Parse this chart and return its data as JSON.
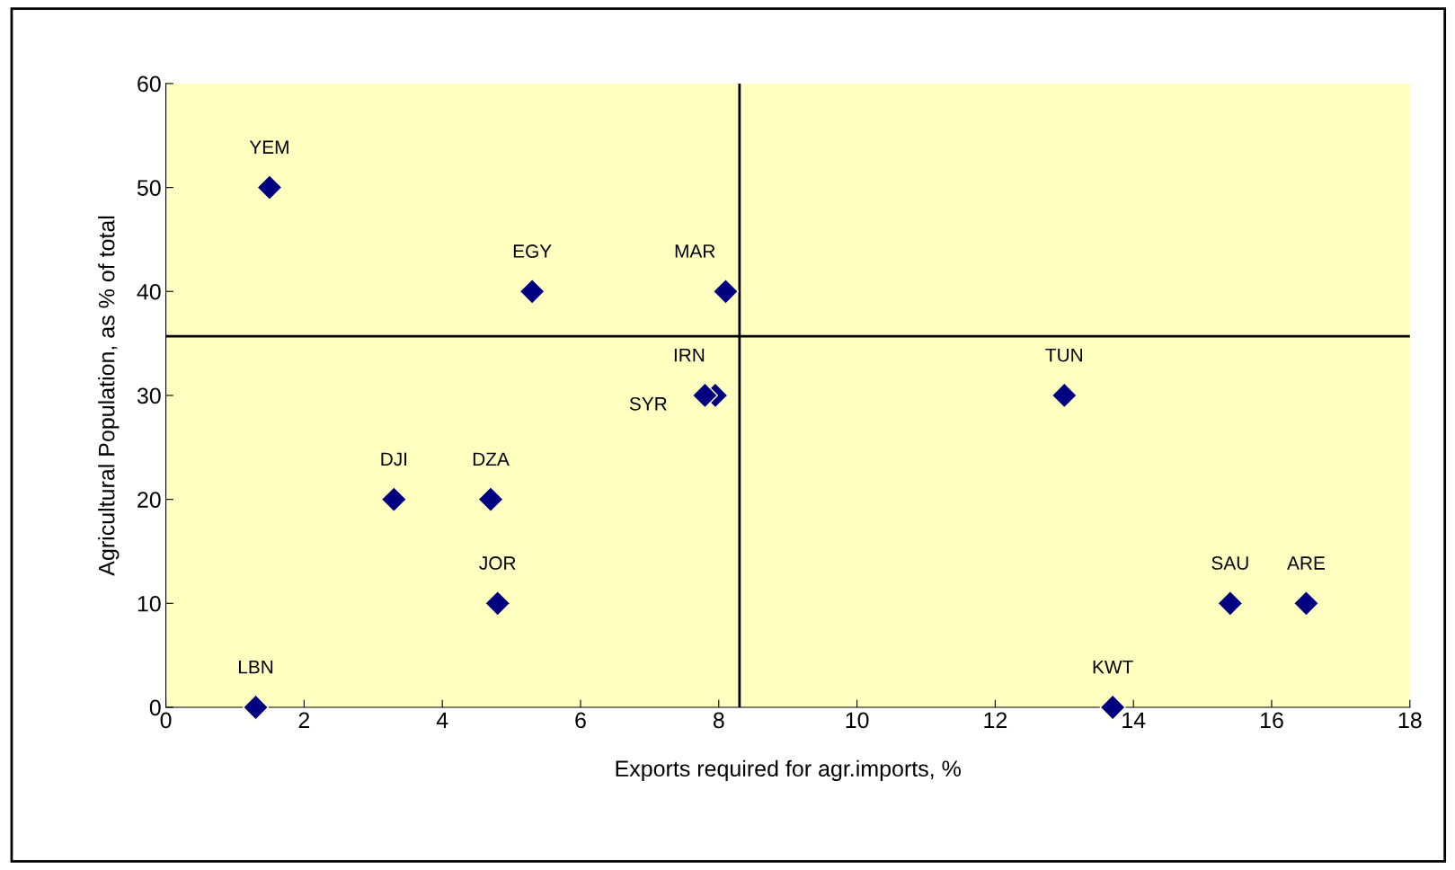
{
  "chart_data": {
    "type": "scatter",
    "xlabel": "Exports required for agr.imports, %",
    "ylabel": "Agricultural Population, as % of total",
    "x": [
      1.5,
      5.3,
      8.1,
      7.95,
      7.8,
      13.0,
      3.3,
      4.7,
      4.8,
      1.3,
      13.7,
      15.4,
      16.5
    ],
    "values": [
      50,
      40,
      40,
      30,
      30,
      30,
      20,
      20,
      10,
      0,
      0,
      10,
      10
    ],
    "color": "#000080",
    "marker": "diamond",
    "xlim": [
      0,
      18
    ],
    "xticks": [
      0,
      2,
      4,
      6,
      8,
      10,
      12,
      14,
      16,
      18
    ],
    "ylim": [
      0,
      60
    ],
    "yticks": [
      0,
      10,
      20,
      30,
      40,
      50,
      60
    ],
    "grid": false,
    "legend": false,
    "ref_lines": [
      {
        "axis": "x",
        "value": 8.3,
        "color": "#000000"
      },
      {
        "axis": "y",
        "value": 35.7,
        "color": "#000000"
      }
    ],
    "annotations": [
      {
        "text": "YEM",
        "x": 1.5,
        "y": 50
      },
      {
        "text": "EGY",
        "x": 5.3,
        "y": 40
      },
      {
        "text": "MAR",
        "x": 8.1,
        "y": 40
      },
      {
        "text": "IRN",
        "x": 7.95,
        "y": 30
      },
      {
        "text": "SYR",
        "x": 7.8,
        "y": 30
      },
      {
        "text": "TUN",
        "x": 13.0,
        "y": 30
      },
      {
        "text": "DJI",
        "x": 3.3,
        "y": 20
      },
      {
        "text": "DZA",
        "x": 4.7,
        "y": 20
      },
      {
        "text": "JOR",
        "x": 4.8,
        "y": 10
      },
      {
        "text": "LBN",
        "x": 1.3,
        "y": 0
      },
      {
        "text": "KWT",
        "x": 13.7,
        "y": 0
      },
      {
        "text": "SAU",
        "x": 15.4,
        "y": 10
      },
      {
        "text": "ARE",
        "x": 16.5,
        "y": 10
      }
    ]
  }
}
